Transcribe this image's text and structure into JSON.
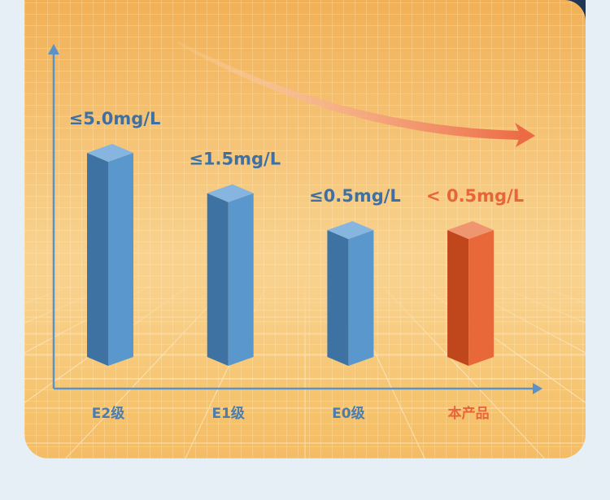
{
  "chart_data": {
    "type": "bar",
    "categories": [
      "E2级",
      "E1级",
      "E0级",
      "本产品"
    ],
    "values": [
      5.0,
      1.5,
      0.5,
      0.5
    ],
    "value_labels": [
      "≤5.0mg/L",
      "≤1.5mg/L",
      "≤0.5mg/L",
      "< 0.5mg/L"
    ],
    "yscale": "log",
    "bar_colors": [
      {
        "left": "#3d72a3",
        "right": "#5a97cd",
        "top": "#86b6e0"
      },
      {
        "left": "#3d72a3",
        "right": "#5a97cd",
        "top": "#86b6e0"
      },
      {
        "left": "#3d72a3",
        "right": "#5a97cd",
        "top": "#86b6e0"
      },
      {
        "left": "#c0461c",
        "right": "#e8683a",
        "top": "#ef9570"
      }
    ],
    "value_label_colors": [
      "#3e70a3",
      "#3e70a3",
      "#3e70a3",
      "#e8643a"
    ],
    "category_label_colors": [
      "#4a7cae",
      "#4a7cae",
      "#4a7cae",
      "#e8643a"
    ]
  },
  "colors": {
    "background": "#e6eff6",
    "panel": "#f6c571",
    "axis": "#5b93c8",
    "trend_arrow": "#ec6a44",
    "corner": "#1f3656"
  }
}
